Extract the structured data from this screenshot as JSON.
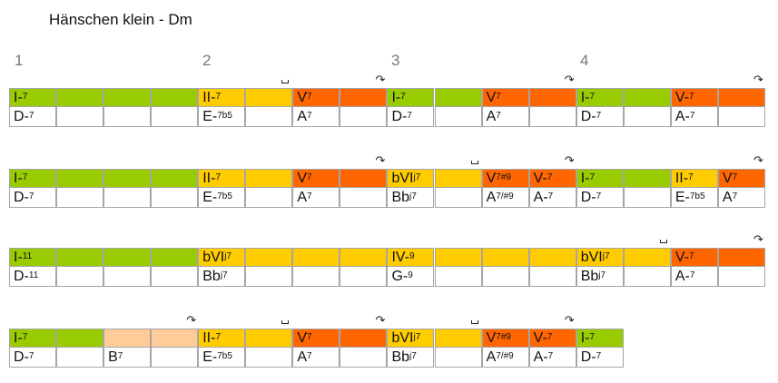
{
  "title": "Hänschen klein - Dm",
  "measure_numbers": [
    "1",
    "2",
    "3",
    "4"
  ],
  "colors": {
    "tonic": "#99cc00",
    "subdominant": "#ffcc00",
    "dominant": "#ff6600",
    "secondary": "#ffcc99"
  },
  "systems": [
    [
      {
        "c": "tonic",
        "fn": [
          "I-",
          "7"
        ],
        "ch": [
          "D-",
          "7"
        ]
      },
      {
        "c": "tonic"
      },
      {
        "c": "tonic"
      },
      {
        "c": "tonic"
      },
      {
        "c": "subdominant",
        "fn": [
          "II-",
          "7"
        ],
        "ch": [
          "E-",
          "7b5"
        ]
      },
      {
        "c": "subdominant",
        "mark": "bracket"
      },
      {
        "c": "dominant",
        "fn": [
          "V",
          "7"
        ],
        "ch": [
          "A",
          "7"
        ]
      },
      {
        "c": "dominant",
        "mark": "arc"
      },
      {
        "c": "tonic",
        "fn": [
          "I-",
          "7"
        ],
        "ch": [
          "D-",
          "7"
        ]
      },
      {
        "c": "tonic"
      },
      {
        "c": "dominant",
        "fn": [
          "V",
          "7"
        ],
        "ch": [
          "A",
          "7"
        ]
      },
      {
        "c": "dominant",
        "mark": "arc"
      },
      {
        "c": "tonic",
        "fn": [
          "I-",
          "7"
        ],
        "ch": [
          "D-",
          "7"
        ]
      },
      {
        "c": "tonic"
      },
      {
        "c": "dominant",
        "fn": [
          "V-",
          "7"
        ],
        "ch": [
          "A-",
          "7"
        ]
      },
      {
        "c": "dominant",
        "mark": "arc"
      }
    ],
    [
      {
        "c": "tonic",
        "fn": [
          "I-",
          "7"
        ],
        "ch": [
          "D-",
          "7"
        ]
      },
      {
        "c": "tonic"
      },
      {
        "c": "tonic"
      },
      {
        "c": "tonic"
      },
      {
        "c": "subdominant",
        "fn": [
          "II-",
          "7"
        ],
        "ch": [
          "E-",
          "7b5"
        ]
      },
      {
        "c": "subdominant"
      },
      {
        "c": "dominant",
        "fn": [
          "V",
          "7"
        ],
        "ch": [
          "A",
          "7"
        ]
      },
      {
        "c": "dominant",
        "mark": "arc"
      },
      {
        "c": "subdominant",
        "fn": [
          "bVI",
          "j7"
        ],
        "ch": [
          "Bb",
          "j7"
        ]
      },
      {
        "c": "subdominant",
        "mark": "bracket"
      },
      {
        "c": "dominant",
        "fn": [
          "V",
          "7#9"
        ],
        "ch": [
          "A",
          "7/#9"
        ]
      },
      {
        "c": "dominant",
        "fn": [
          "V-",
          "7"
        ],
        "ch": [
          "A-",
          "7"
        ],
        "mark": "arc"
      },
      {
        "c": "tonic",
        "fn": [
          "I-",
          "7"
        ],
        "ch": [
          "D-",
          "7"
        ]
      },
      {
        "c": "tonic"
      },
      {
        "c": "subdominant",
        "fn": [
          "II-",
          "7"
        ],
        "ch": [
          "E-",
          "7b5"
        ]
      },
      {
        "c": "dominant",
        "fn": [
          "V",
          "7"
        ],
        "ch": [
          "A",
          "7"
        ],
        "mark": "arc"
      }
    ],
    [
      {
        "c": "tonic",
        "fn": [
          "I-",
          "11"
        ],
        "ch": [
          "D-",
          "11"
        ]
      },
      {
        "c": "tonic"
      },
      {
        "c": "tonic"
      },
      {
        "c": "tonic"
      },
      {
        "c": "subdominant",
        "fn": [
          "bVI",
          "j7"
        ],
        "ch": [
          "Bb",
          "j7"
        ]
      },
      {
        "c": "subdominant"
      },
      {
        "c": "subdominant"
      },
      {
        "c": "subdominant"
      },
      {
        "c": "subdominant",
        "fn": [
          "IV-",
          "9"
        ],
        "ch": [
          "G-",
          "9"
        ]
      },
      {
        "c": "subdominant"
      },
      {
        "c": "subdominant"
      },
      {
        "c": "subdominant"
      },
      {
        "c": "subdominant",
        "fn": [
          "bVI",
          "j7"
        ],
        "ch": [
          "Bb",
          "j7"
        ]
      },
      {
        "c": "subdominant",
        "mark": "bracket"
      },
      {
        "c": "dominant",
        "fn": [
          "V-",
          "7"
        ],
        "ch": [
          "A-",
          "7"
        ]
      },
      {
        "c": "dominant",
        "mark": "arc"
      }
    ],
    [
      {
        "c": "tonic",
        "fn": [
          "I-",
          "7"
        ],
        "ch": [
          "D-",
          "7"
        ]
      },
      {
        "c": "tonic"
      },
      {
        "c": "secondary",
        "ch": [
          "B",
          "7"
        ]
      },
      {
        "c": "secondary",
        "mark": "arc"
      },
      {
        "c": "subdominant",
        "fn": [
          "II-",
          "7"
        ],
        "ch": [
          "E-",
          "7b5"
        ]
      },
      {
        "c": "subdominant",
        "mark": "bracket"
      },
      {
        "c": "dominant",
        "fn": [
          "V",
          "7"
        ],
        "ch": [
          "A",
          "7"
        ]
      },
      {
        "c": "dominant",
        "mark": "arc"
      },
      {
        "c": "subdominant",
        "fn": [
          "bVI",
          "j7"
        ],
        "ch": [
          "Bb",
          "j7"
        ]
      },
      {
        "c": "subdominant",
        "mark": "bracket"
      },
      {
        "c": "dominant",
        "fn": [
          "V",
          "7#9"
        ],
        "ch": [
          "A",
          "7/#9"
        ]
      },
      {
        "c": "dominant",
        "fn": [
          "V-",
          "7"
        ],
        "ch": [
          "A-",
          "7"
        ],
        "mark": "arc"
      },
      {
        "c": "tonic",
        "fn": [
          "I-",
          "7"
        ],
        "ch": [
          "D-",
          "7"
        ]
      }
    ]
  ]
}
